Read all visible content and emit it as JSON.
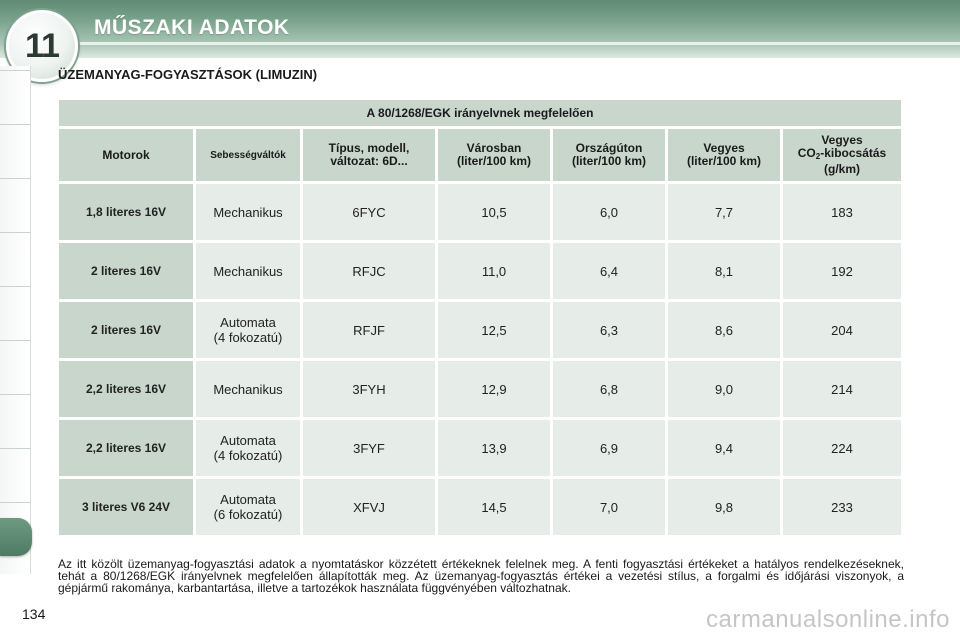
{
  "header": {
    "chapter_number": "11",
    "chapter_title": "MŰSZAKI ADATOK"
  },
  "section_title": "ÜZEMANYAG-FOGYASZTÁSOK (LIMUZIN)",
  "table": {
    "caption": "A 80/1268/EGK irányelvnek megfelelően",
    "headers": {
      "motor": "Motorok",
      "gearbox": "Sebességváltók",
      "type_line1": "Típus, modell,",
      "type_line2": "változat: 6D...",
      "city_line1": "Városban",
      "city_line2": "(liter/100 km)",
      "road_line1": "Országúton",
      "road_line2": "(liter/100 km)",
      "mixed_line1": "Vegyes",
      "mixed_line2": "(liter/100 km)",
      "co2_line1": "Vegyes",
      "co2_prefix": "CO",
      "co2_sub": "2",
      "co2_suffix": "-kibocsátás",
      "co2_line3": "(g/km)"
    },
    "rows": [
      {
        "motor": "1,8 literes 16V",
        "gearbox_line1": "Mechanikus",
        "gearbox_line2": "",
        "type": "6FYC",
        "city": "10,5",
        "road": "6,0",
        "mixed": "7,7",
        "co2": "183"
      },
      {
        "motor": "2 literes 16V",
        "gearbox_line1": "Mechanikus",
        "gearbox_line2": "",
        "type": "RFJC",
        "city": "11,0",
        "road": "6,4",
        "mixed": "8,1",
        "co2": "192"
      },
      {
        "motor": "2 literes 16V",
        "gearbox_line1": "Automata",
        "gearbox_line2": "(4 fokozatú)",
        "type": "RFJF",
        "city": "12,5",
        "road": "6,3",
        "mixed": "8,6",
        "co2": "204"
      },
      {
        "motor": "2,2 literes 16V",
        "gearbox_line1": "Mechanikus",
        "gearbox_line2": "",
        "type": "3FYH",
        "city": "12,9",
        "road": "6,8",
        "mixed": "9,0",
        "co2": "214"
      },
      {
        "motor": "2,2 literes 16V",
        "gearbox_line1": "Automata",
        "gearbox_line2": "(4 fokozatú)",
        "type": "3FYF",
        "city": "13,9",
        "road": "6,9",
        "mixed": "9,4",
        "co2": "224"
      },
      {
        "motor": "3 literes V6 24V",
        "gearbox_line1": "Automata",
        "gearbox_line2": "(6 fokozatú)",
        "type": "XFVJ",
        "city": "14,5",
        "road": "7,0",
        "mixed": "9,8",
        "co2": "233"
      }
    ]
  },
  "footnote": "Az itt közölt üzemanyag-fogyasztási adatok a nyomtatáskor közzétett értékeknek felelnek meg. A fenti fogyasztási értékeket a hatályos rendelkezéseknek, tehát a 80/1268/EGK irányelvnek megfelelően állapították meg. Az üzemanyag-fogyasztás értékei a vezetési stílus, a forgalmi és időjárási viszonyok, a gépjármű rakománya, karbantartása, illetve a tartozékok használata függvényében változhatnak.",
  "page_number": "134",
  "watermark": "carmanualsonline.info",
  "colors": {
    "header_green": "#6e9a82",
    "table_header": "#c9d6cc",
    "table_cell": "#e6ece7"
  }
}
